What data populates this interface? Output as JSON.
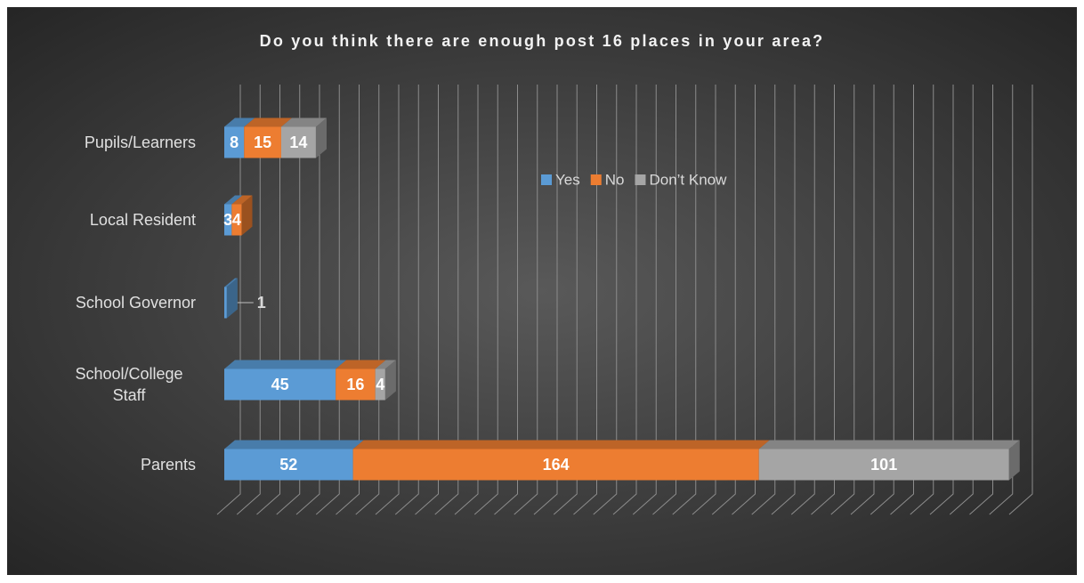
{
  "chart_data": {
    "type": "bar",
    "orientation": "horizontal",
    "stacked": true,
    "three_d": true,
    "title": "Do you think there are enough post 16 places in your area?",
    "categories": [
      "Pupils/Learners",
      "Local Resident",
      "School Governor",
      "School/College Staff",
      "Parents"
    ],
    "series": [
      {
        "name": "Yes",
        "color": "#5b9bd5",
        "values": [
          8,
          3,
          1,
          45,
          52
        ]
      },
      {
        "name": "No",
        "color": "#ed7d31",
        "values": [
          15,
          4,
          null,
          16,
          164
        ]
      },
      {
        "name": "Don’t Know",
        "color": "#a5a5a5",
        "values": [
          14,
          null,
          null,
          4,
          101
        ]
      }
    ],
    "xlim": [
      0,
      320
    ],
    "xticks": [
      0,
      8,
      16,
      24,
      32,
      40,
      48,
      56,
      64,
      72,
      80,
      88,
      96,
      104,
      112,
      120,
      128,
      136,
      144,
      152,
      160,
      168,
      176,
      184,
      192,
      200,
      208,
      216,
      224,
      232,
      240,
      248,
      256,
      264,
      272,
      280,
      288,
      296,
      304,
      312,
      320
    ],
    "grid": true,
    "legend": "top-right"
  }
}
